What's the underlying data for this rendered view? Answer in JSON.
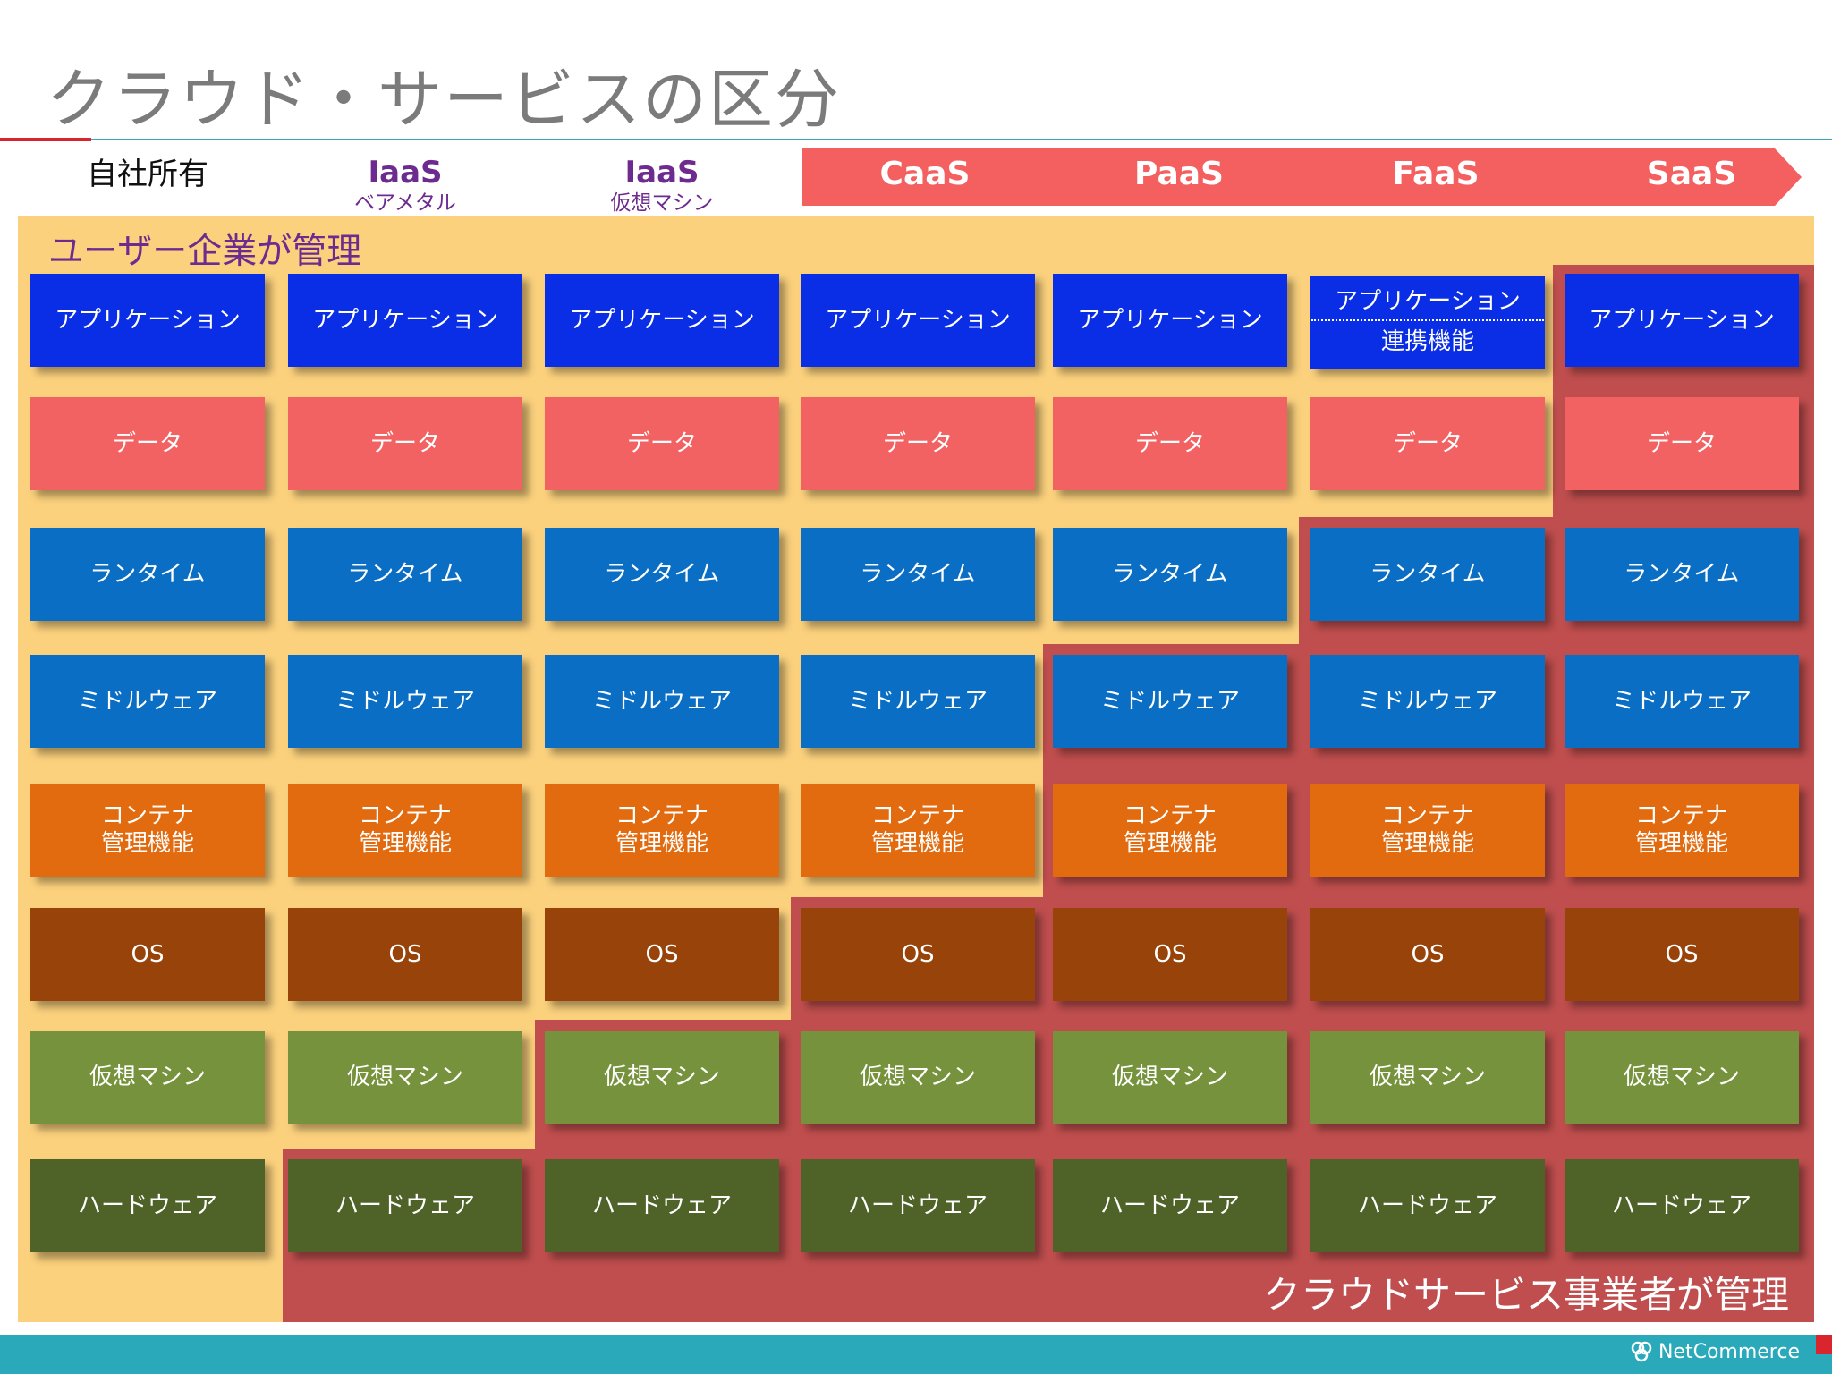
{
  "title": "クラウド・サービスの区分",
  "columns": [
    {
      "name": "自社所有",
      "sub": "",
      "style": "plain"
    },
    {
      "name": "IaaS",
      "sub": "ベアメタル",
      "style": "iaas"
    },
    {
      "name": "IaaS",
      "sub": "仮想マシン",
      "style": "iaas"
    },
    {
      "name": "CaaS",
      "sub": "",
      "style": "arrow"
    },
    {
      "name": "PaaS",
      "sub": "",
      "style": "arrow"
    },
    {
      "name": "FaaS",
      "sub": "",
      "style": "arrow"
    },
    {
      "name": "SaaS",
      "sub": "",
      "style": "arrow"
    }
  ],
  "managed_from_row": [
    8,
    7,
    6,
    5,
    3,
    2,
    0
  ],
  "layers": [
    {
      "label": "アプリケーション",
      "color": "#0a2de6"
    },
    {
      "label": "データ",
      "color": "#f36262"
    },
    {
      "label": "ランタイム",
      "color": "#0a6ec4"
    },
    {
      "label": "ミドルウェア",
      "color": "#0a6ec4"
    },
    {
      "label": "コンテナ\n管理機能",
      "color": "#e26b10"
    },
    {
      "label": "OS",
      "color": "#97430a"
    },
    {
      "label": "仮想マシン",
      "color": "#76923c"
    },
    {
      "label": "ハードウェア",
      "color": "#4f6228"
    }
  ],
  "faas_application": {
    "top": "アプリケーション",
    "bottom": "連携機能"
  },
  "zones": {
    "user": {
      "label": "ユーザー企業が管理",
      "color": "#fbd17d"
    },
    "provider": {
      "label": "クラウドサービス事業者が管理",
      "color": "#c04e4e"
    }
  },
  "arrow_color": "#f45f5f",
  "footer": {
    "brand": "NetCommerce",
    "color": "#29a9b9"
  }
}
